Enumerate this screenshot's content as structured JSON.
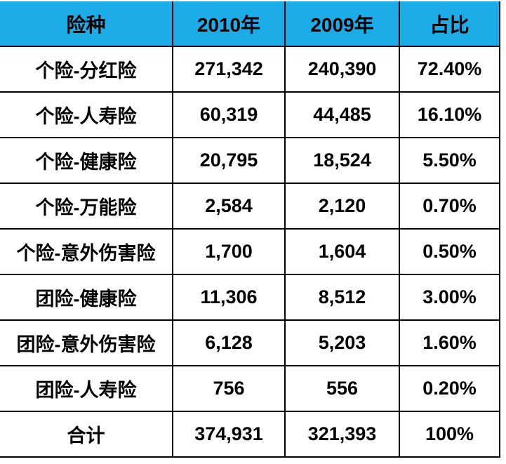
{
  "table": {
    "headers": [
      "险种",
      "2010年",
      "2009年",
      "占比"
    ],
    "rows": [
      [
        "个险-分红险",
        "271,342",
        "240,390",
        "72.40%"
      ],
      [
        "个险-人寿险",
        "60,319",
        "44,485",
        "16.10%"
      ],
      [
        "个险-健康险",
        "20,795",
        "18,524",
        "5.50%"
      ],
      [
        "个险-万能险",
        "2,584",
        "2,120",
        "0.70%"
      ],
      [
        "个险-意外伤害险",
        "1,700",
        "1,604",
        "0.50%"
      ],
      [
        "团险-健康险",
        "11,306",
        "8,512",
        "3.00%"
      ],
      [
        "团险-意外伤害险",
        "6,128",
        "5,203",
        "1.60%"
      ],
      [
        "团险-人寿险",
        "756",
        "556",
        "0.20%"
      ],
      [
        "合计",
        "374,931",
        "321,393",
        "100%"
      ]
    ]
  },
  "colors": {
    "header_bg": "#1CACE8",
    "border": "#000000",
    "text": "#000000",
    "body_bg": "#FFFFFF"
  },
  "chart_data": {
    "type": "table",
    "title": "",
    "columns": [
      "险种",
      "2010年",
      "2009年",
      "占比"
    ],
    "rows": [
      [
        "个险-分红险",
        271342,
        240390,
        "72.40%"
      ],
      [
        "个险-人寿险",
        60319,
        44485,
        "16.10%"
      ],
      [
        "个险-健康险",
        20795,
        18524,
        "5.50%"
      ],
      [
        "个险-万能险",
        2584,
        2120,
        "0.70%"
      ],
      [
        "个险-意外伤害险",
        1700,
        1604,
        "0.50%"
      ],
      [
        "团险-健康险",
        11306,
        8512,
        "3.00%"
      ],
      [
        "团险-意外伤害险",
        6128,
        5203,
        "1.60%"
      ],
      [
        "团险-人寿险",
        756,
        556,
        "0.20%"
      ],
      [
        "合计",
        374931,
        321393,
        "100%"
      ]
    ],
    "notes": "Insurance premium by product line, header row highlighted blue, last row is totals"
  }
}
